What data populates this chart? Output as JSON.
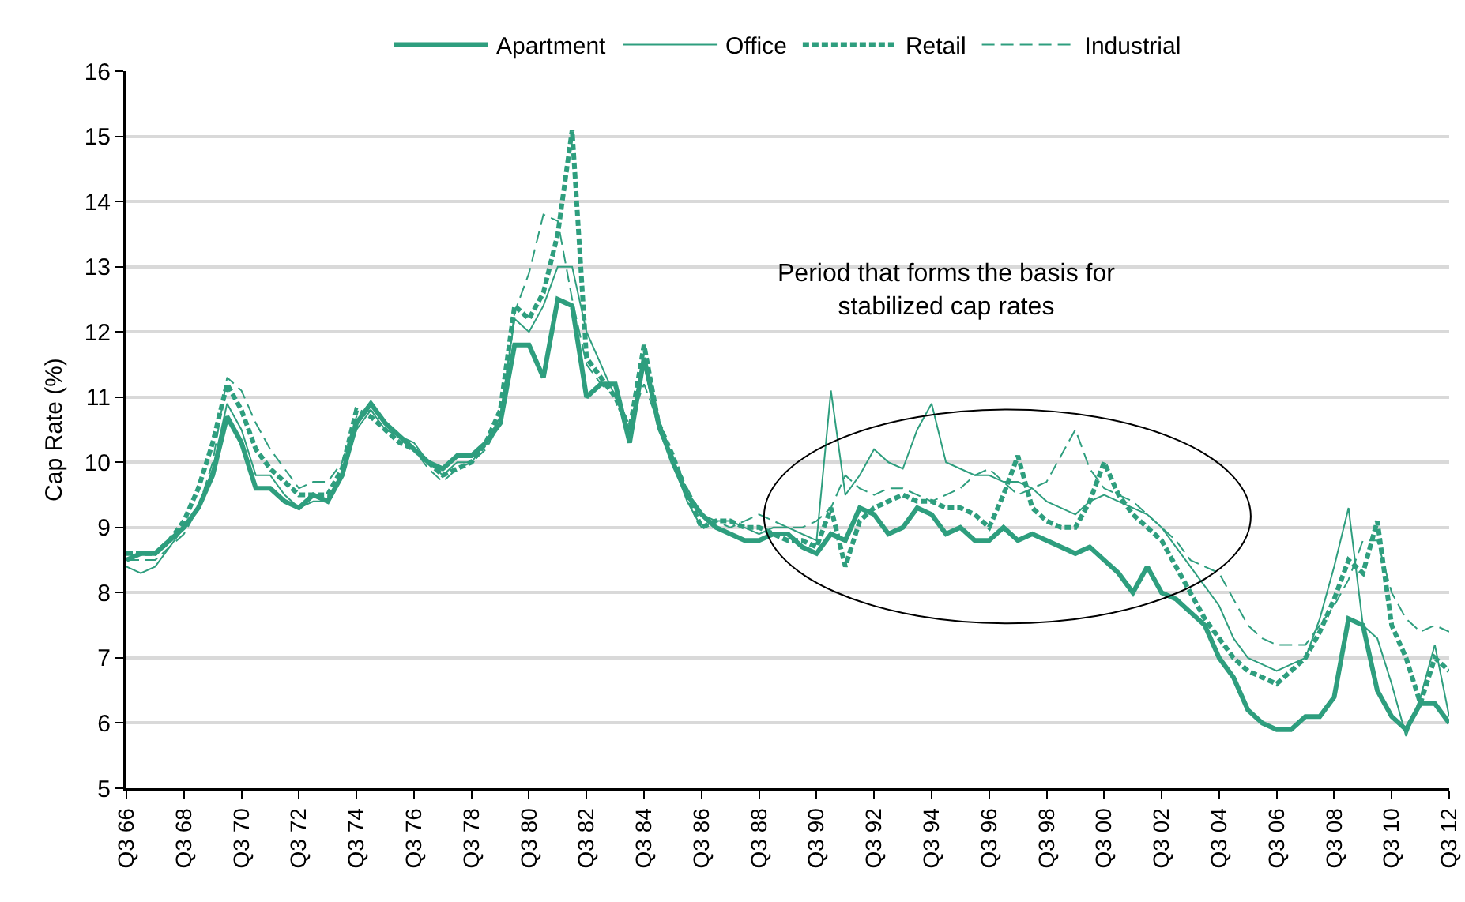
{
  "chart_data": {
    "type": "line",
    "ylabel": "Cap Rate (%)",
    "annotations": [
      "Period that forms the basis for stabilized cap rates"
    ],
    "categories": [
      "Q3 66",
      null,
      null,
      null,
      "Q3 68",
      null,
      null,
      null,
      "Q3 70",
      null,
      null,
      null,
      "Q3 72",
      null,
      null,
      null,
      "Q3 74",
      null,
      null,
      null,
      "Q3 76",
      null,
      null,
      null,
      "Q3 78",
      null,
      null,
      null,
      "Q3 80",
      null,
      null,
      null,
      "Q3 82",
      null,
      null,
      null,
      "Q3 84",
      null,
      null,
      null,
      "Q3 86",
      null,
      null,
      null,
      "Q3 88",
      null,
      null,
      null,
      "Q3 90",
      null,
      null,
      null,
      "Q3 92",
      null,
      null,
      null,
      "Q3 94",
      null,
      null,
      null,
      "Q3 96",
      null,
      null,
      null,
      "Q3 98",
      null,
      null,
      null,
      "Q3 00",
      null,
      null,
      null,
      "Q3 02",
      null,
      null,
      null,
      "Q3 04",
      null,
      null,
      null,
      "Q3 06",
      null,
      null,
      null,
      "Q3 08",
      null,
      null,
      null,
      "Q3 10",
      null,
      null,
      null,
      "Q3 12"
    ],
    "series": [
      {
        "name": "Apartment",
        "color": "#2e9e7e",
        "line_style": "solid",
        "values": [
          8.5,
          8.6,
          8.6,
          8.8,
          9.0,
          9.3,
          9.8,
          10.7,
          10.3,
          9.6,
          9.6,
          9.4,
          9.3,
          9.5,
          9.4,
          9.8,
          10.6,
          10.9,
          10.6,
          10.4,
          10.2,
          10.0,
          9.9,
          10.1,
          10.1,
          10.3,
          10.6,
          11.8,
          11.8,
          11.3,
          12.5,
          12.4,
          11.0,
          11.2,
          11.2,
          10.3,
          11.6,
          10.6,
          10.0,
          9.5,
          9.2,
          9.0,
          8.9,
          8.8,
          8.8,
          8.9,
          8.9,
          8.7,
          8.6,
          8.9,
          8.8,
          9.3,
          9.2,
          8.9,
          9.0,
          9.3,
          9.2,
          8.9,
          9.0,
          8.8,
          8.8,
          9.0,
          8.8,
          8.9,
          8.8,
          8.7,
          8.6,
          8.7,
          8.5,
          8.3,
          8.0,
          8.4,
          8.0,
          7.9,
          7.7,
          7.5,
          7.0,
          6.7,
          6.2,
          6.0,
          5.9,
          5.9,
          6.1,
          6.1,
          6.4,
          7.6,
          7.5,
          6.5,
          6.1,
          5.9,
          6.3,
          6.3,
          6.0
        ]
      },
      {
        "name": "Office",
        "color": "#2e9e7e",
        "line_style": "solid",
        "values": [
          8.4,
          8.3,
          8.4,
          8.7,
          9.0,
          9.3,
          9.9,
          10.9,
          10.5,
          9.8,
          9.8,
          9.5,
          9.3,
          9.4,
          9.4,
          9.8,
          10.5,
          10.8,
          10.5,
          10.4,
          10.3,
          10.0,
          9.8,
          10.0,
          10.0,
          10.3,
          10.7,
          12.2,
          12.0,
          12.4,
          13.0,
          13.0,
          12.0,
          11.5,
          11.0,
          10.5,
          11.5,
          10.5,
          10.0,
          9.4,
          9.0,
          9.1,
          9.1,
          9.0,
          8.9,
          9.0,
          9.0,
          8.9,
          8.8,
          11.1,
          9.5,
          9.8,
          10.2,
          10.0,
          9.9,
          10.5,
          10.9,
          10.0,
          9.9,
          9.8,
          9.8,
          9.7,
          9.7,
          9.6,
          9.4,
          9.3,
          9.2,
          9.4,
          9.5,
          9.4,
          9.3,
          9.2,
          9.0,
          8.7,
          8.4,
          8.1,
          7.8,
          7.3,
          7.0,
          6.9,
          6.8,
          6.9,
          7.0,
          7.6,
          8.4,
          9.3,
          7.5,
          7.3,
          6.6,
          5.8,
          6.4,
          7.2,
          6.1
        ]
      },
      {
        "name": "Retail",
        "color": "#2e9e7e",
        "line_style": "dotted",
        "values": [
          8.6,
          8.6,
          8.6,
          8.8,
          9.1,
          9.6,
          10.3,
          11.2,
          10.8,
          10.2,
          9.9,
          9.7,
          9.5,
          9.5,
          9.5,
          9.9,
          10.8,
          10.7,
          10.5,
          10.3,
          10.2,
          10.0,
          9.8,
          9.9,
          10.0,
          10.3,
          10.8,
          12.4,
          12.2,
          12.6,
          13.5,
          15.1,
          11.6,
          11.3,
          11.0,
          10.5,
          11.8,
          10.6,
          10.1,
          9.5,
          9.0,
          9.1,
          9.1,
          9.0,
          9.0,
          8.9,
          8.8,
          8.8,
          8.7,
          9.3,
          8.4,
          9.1,
          9.3,
          9.4,
          9.5,
          9.4,
          9.4,
          9.3,
          9.3,
          9.2,
          9.0,
          9.5,
          10.1,
          9.3,
          9.1,
          9.0,
          9.0,
          9.4,
          10.0,
          9.5,
          9.2,
          9.0,
          8.8,
          8.4,
          8.0,
          7.6,
          7.3,
          7.0,
          6.8,
          6.7,
          6.6,
          6.8,
          7.0,
          7.4,
          7.9,
          8.5,
          8.3,
          9.1,
          7.5,
          7.0,
          6.3,
          7.0,
          6.8
        ]
      },
      {
        "name": "Industrial",
        "color": "#2e9e7e",
        "line_style": "dashed",
        "values": [
          8.5,
          8.5,
          8.5,
          8.7,
          8.9,
          9.3,
          10.0,
          11.3,
          11.1,
          10.6,
          10.2,
          9.9,
          9.6,
          9.7,
          9.7,
          10.0,
          10.7,
          10.8,
          10.6,
          10.4,
          10.2,
          9.9,
          9.7,
          9.9,
          10.0,
          10.2,
          10.6,
          12.3,
          12.9,
          13.8,
          13.7,
          12.5,
          11.5,
          11.2,
          11.0,
          10.6,
          11.2,
          10.6,
          10.1,
          9.6,
          9.2,
          9.1,
          9.0,
          9.1,
          9.2,
          9.1,
          9.0,
          9.0,
          9.1,
          9.3,
          9.8,
          9.6,
          9.5,
          9.6,
          9.6,
          9.5,
          9.4,
          9.5,
          9.6,
          9.8,
          9.9,
          9.7,
          9.5,
          9.6,
          9.7,
          10.1,
          10.5,
          9.9,
          9.6,
          9.5,
          9.4,
          9.2,
          9.0,
          8.8,
          8.5,
          8.4,
          8.3,
          7.9,
          7.5,
          7.3,
          7.2,
          7.2,
          7.2,
          7.5,
          7.8,
          8.2,
          8.8,
          8.8,
          8.0,
          7.6,
          7.4,
          7.5,
          7.4
        ]
      }
    ],
    "ylim": [
      5,
      16
    ],
    "yticks": [
      5,
      6,
      7,
      8,
      9,
      10,
      11,
      12,
      13,
      14,
      15,
      16
    ],
    "grid": "y",
    "legend": "top",
    "marker": "none"
  }
}
